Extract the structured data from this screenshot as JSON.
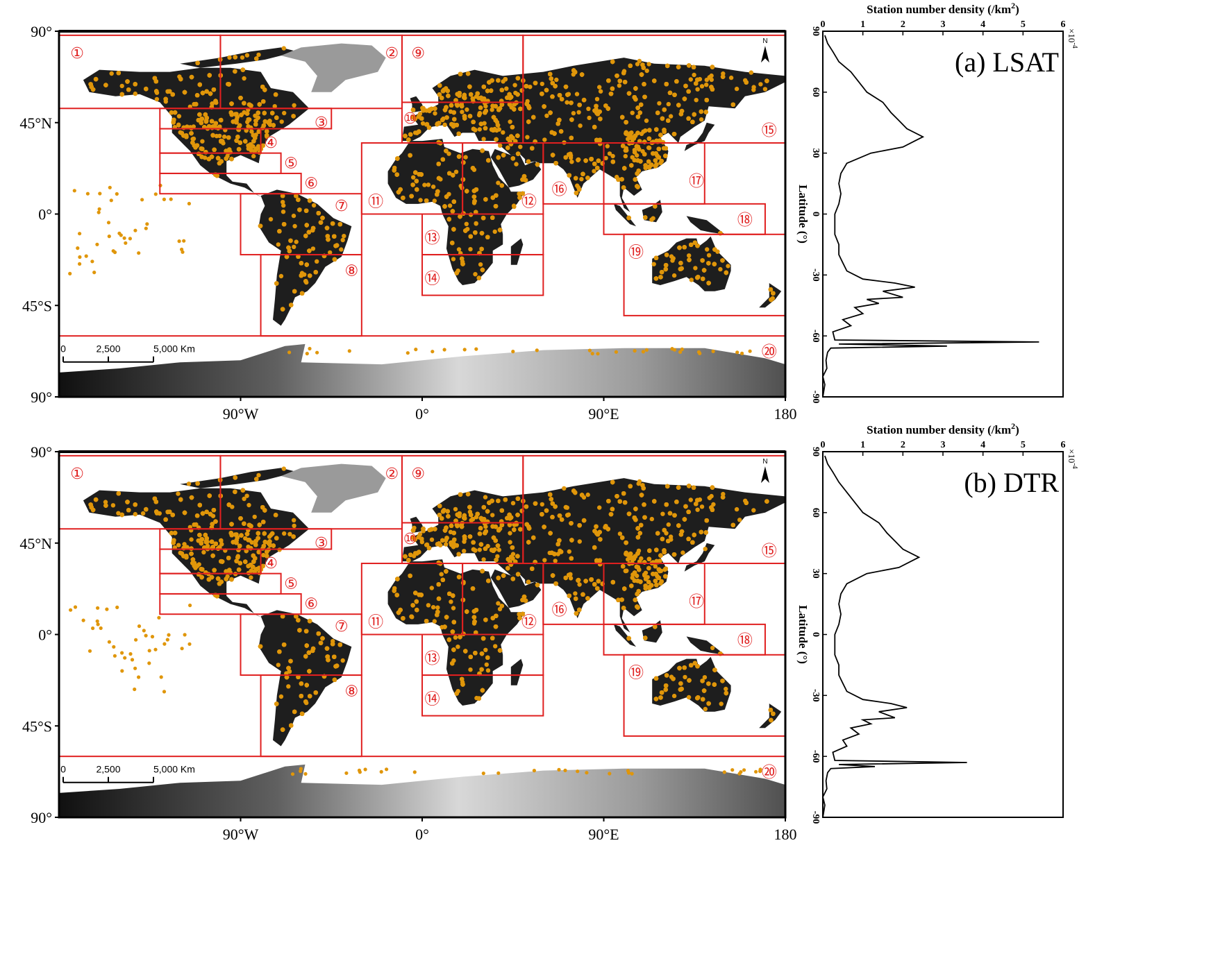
{
  "figure": {
    "map_axis": {
      "lat_ticks": [
        "90°",
        "45°N",
        "0°",
        "45°S",
        "90°"
      ],
      "lon_ticks": [
        "90°W",
        "0°",
        "90°E",
        "180"
      ],
      "scale_bar_labels": [
        "0",
        "2,500",
        "5,000 Km"
      ],
      "north_label": "N"
    },
    "profile_axis": {
      "xlabel": "Station number density (/km²)",
      "xlabel_main": "Station number density (/km",
      "xlabel_sup": "2",
      "xlabel_tail": ")",
      "ylabel": "Latitude (°)",
      "multiplier_base": "×10",
      "multiplier_exp": "-4",
      "x_ticks": [
        "0",
        "1",
        "2",
        "3",
        "4",
        "5",
        "6"
      ],
      "y_ticks": [
        "90",
        "60",
        "30",
        "0",
        "-30",
        "-60",
        "-90"
      ]
    },
    "panels": [
      {
        "id": "a",
        "label": "(a) LSAT"
      },
      {
        "id": "b",
        "label": "(b) DTR"
      }
    ],
    "region_labels": [
      "①",
      "②",
      "③",
      "④",
      "⑤",
      "⑥",
      "⑦",
      "⑧",
      "⑨",
      "⑩",
      "⑪",
      "⑫",
      "⑬",
      "⑭",
      "⑮",
      "⑯",
      "⑰",
      "⑱",
      "⑲",
      "⑳"
    ],
    "colors": {
      "region_box": "#e02020",
      "station_dot": "#e0960a",
      "land_dark": "#1e1e1e",
      "antarctica": "#b8b8b8",
      "profile_line": "#000000"
    }
  },
  "chart_data": [
    {
      "type": "line",
      "panel": "(a) LSAT",
      "xlabel": "Station number density (/km²)",
      "ylabel": "Latitude (°)",
      "x_multiplier": "×10-4",
      "xlim": [
        0,
        6
      ],
      "ylim": [
        -90,
        90
      ],
      "series": [
        {
          "points": [
            [
              0.0,
              -90
            ],
            [
              0.05,
              -84
            ],
            [
              0.0,
              -80
            ],
            [
              0.1,
              -76
            ],
            [
              0.08,
              -72
            ],
            [
              0.12,
              -68
            ],
            [
              0.2,
              -66
            ],
            [
              3.1,
              -65
            ],
            [
              0.4,
              -64
            ],
            [
              5.4,
              -63
            ],
            [
              0.3,
              -62
            ],
            [
              0.25,
              -58
            ],
            [
              0.7,
              -55
            ],
            [
              0.5,
              -52
            ],
            [
              1.0,
              -49
            ],
            [
              0.8,
              -46
            ],
            [
              1.4,
              -44
            ],
            [
              1.1,
              -42
            ],
            [
              2.0,
              -41
            ],
            [
              1.5,
              -38
            ],
            [
              2.3,
              -36
            ],
            [
              1.8,
              -34
            ],
            [
              1.0,
              -32
            ],
            [
              0.6,
              -28
            ],
            [
              0.5,
              -24
            ],
            [
              0.4,
              -20
            ],
            [
              0.4,
              -15
            ],
            [
              0.3,
              -10
            ],
            [
              0.3,
              -5
            ],
            [
              0.3,
              0
            ],
            [
              0.4,
              5
            ],
            [
              0.45,
              10
            ],
            [
              0.4,
              15
            ],
            [
              0.45,
              20
            ],
            [
              0.6,
              25
            ],
            [
              1.2,
              30
            ],
            [
              2.0,
              33
            ],
            [
              2.3,
              36
            ],
            [
              2.5,
              38
            ],
            [
              2.1,
              42
            ],
            [
              1.9,
              46
            ],
            [
              1.7,
              50
            ],
            [
              1.5,
              55
            ],
            [
              1.1,
              60
            ],
            [
              0.9,
              65
            ],
            [
              0.7,
              70
            ],
            [
              0.4,
              75
            ],
            [
              0.25,
              80
            ],
            [
              0.12,
              84
            ],
            [
              0.05,
              88
            ]
          ]
        }
      ]
    },
    {
      "type": "line",
      "panel": "(b) DTR",
      "xlabel": "Station number density (/km²)",
      "ylabel": "Latitude (°)",
      "x_multiplier": "×10-4",
      "xlim": [
        0,
        6
      ],
      "ylim": [
        -90,
        90
      ],
      "series": [
        {
          "points": [
            [
              0.0,
              -90
            ],
            [
              0.05,
              -84
            ],
            [
              0.0,
              -80
            ],
            [
              0.1,
              -76
            ],
            [
              0.08,
              -72
            ],
            [
              0.12,
              -68
            ],
            [
              0.2,
              -66
            ],
            [
              1.3,
              -65
            ],
            [
              0.4,
              -64
            ],
            [
              3.6,
              -63
            ],
            [
              0.3,
              -62
            ],
            [
              0.25,
              -58
            ],
            [
              0.6,
              -55
            ],
            [
              0.5,
              -52
            ],
            [
              0.9,
              -49
            ],
            [
              0.7,
              -46
            ],
            [
              1.2,
              -44
            ],
            [
              1.0,
              -42
            ],
            [
              1.8,
              -41
            ],
            [
              1.4,
              -38
            ],
            [
              2.1,
              -36
            ],
            [
              1.7,
              -34
            ],
            [
              1.0,
              -32
            ],
            [
              0.6,
              -28
            ],
            [
              0.5,
              -24
            ],
            [
              0.4,
              -20
            ],
            [
              0.4,
              -15
            ],
            [
              0.3,
              -10
            ],
            [
              0.3,
              -5
            ],
            [
              0.3,
              0
            ],
            [
              0.4,
              5
            ],
            [
              0.45,
              10
            ],
            [
              0.4,
              15
            ],
            [
              0.45,
              20
            ],
            [
              0.6,
              25
            ],
            [
              1.1,
              30
            ],
            [
              1.9,
              33
            ],
            [
              2.2,
              36
            ],
            [
              2.4,
              38
            ],
            [
              2.0,
              42
            ],
            [
              1.8,
              46
            ],
            [
              1.6,
              50
            ],
            [
              1.4,
              55
            ],
            [
              1.0,
              60
            ],
            [
              0.8,
              65
            ],
            [
              0.6,
              70
            ],
            [
              0.4,
              75
            ],
            [
              0.25,
              80
            ],
            [
              0.12,
              84
            ],
            [
              0.05,
              88
            ]
          ]
        }
      ]
    }
  ]
}
